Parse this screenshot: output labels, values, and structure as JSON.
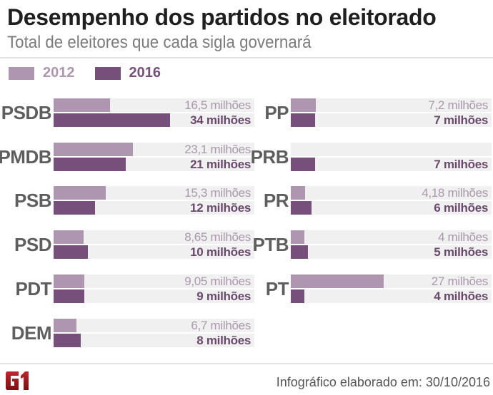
{
  "title": "Desempenho dos partidos no eleitorado",
  "subtitle": "Total de eleitores que cada sigla governará",
  "colors": {
    "y2012": "#ae96b0",
    "y2016": "#76507a",
    "track": "#f0f0f0",
    "logo": "#a3151b"
  },
  "legend": [
    {
      "label": "2012",
      "color": "#ae96b0",
      "text_color": "#ae96b0"
    },
    {
      "label": "2016",
      "color": "#76507a",
      "text_color": "#76507a"
    }
  ],
  "footer": {
    "logo_text": "G1",
    "credit": "Infográfico elaborado em: 30/10/2016"
  },
  "chart_data": {
    "type": "bar",
    "orientation": "horizontal",
    "title": "Desempenho dos partidos no eleitorado",
    "subtitle": "Total de eleitores que cada sigla governará",
    "unit": "milhões de eleitores",
    "xlim": [
      0,
      58
    ],
    "series_names": [
      "2012",
      "2016"
    ],
    "categories": [
      "PSDB",
      "PMDB",
      "PSB",
      "PSD",
      "PDT",
      "DEM",
      "PP",
      "PRB",
      "PR",
      "PTB",
      "PT"
    ],
    "series": [
      {
        "name": "2012",
        "values": [
          16.5,
          23.1,
          15.3,
          8.65,
          9.05,
          6.7,
          7.2,
          null,
          4.18,
          4,
          27
        ],
        "labels": [
          "16,5 milhões",
          "23,1 milhões",
          "15,3 milhões",
          "8,65 milhões",
          "9,05 milhões",
          "6,7 milhões",
          "7,2 milhões",
          "",
          "4,18 milhões",
          "4 milhões",
          "27 milhões"
        ]
      },
      {
        "name": "2016",
        "values": [
          34,
          21,
          12,
          10,
          9,
          8,
          7,
          7,
          6,
          5,
          4
        ],
        "labels": [
          "34 milhões",
          "21 milhões",
          "12 milhões",
          "10 milhões",
          "9 milhões",
          "8 milhões",
          "7 milhões",
          "7 milhões",
          "6 milhões",
          "5 milhões",
          "4 milhões"
        ]
      }
    ],
    "legend_position": "top-left",
    "grid": false
  }
}
